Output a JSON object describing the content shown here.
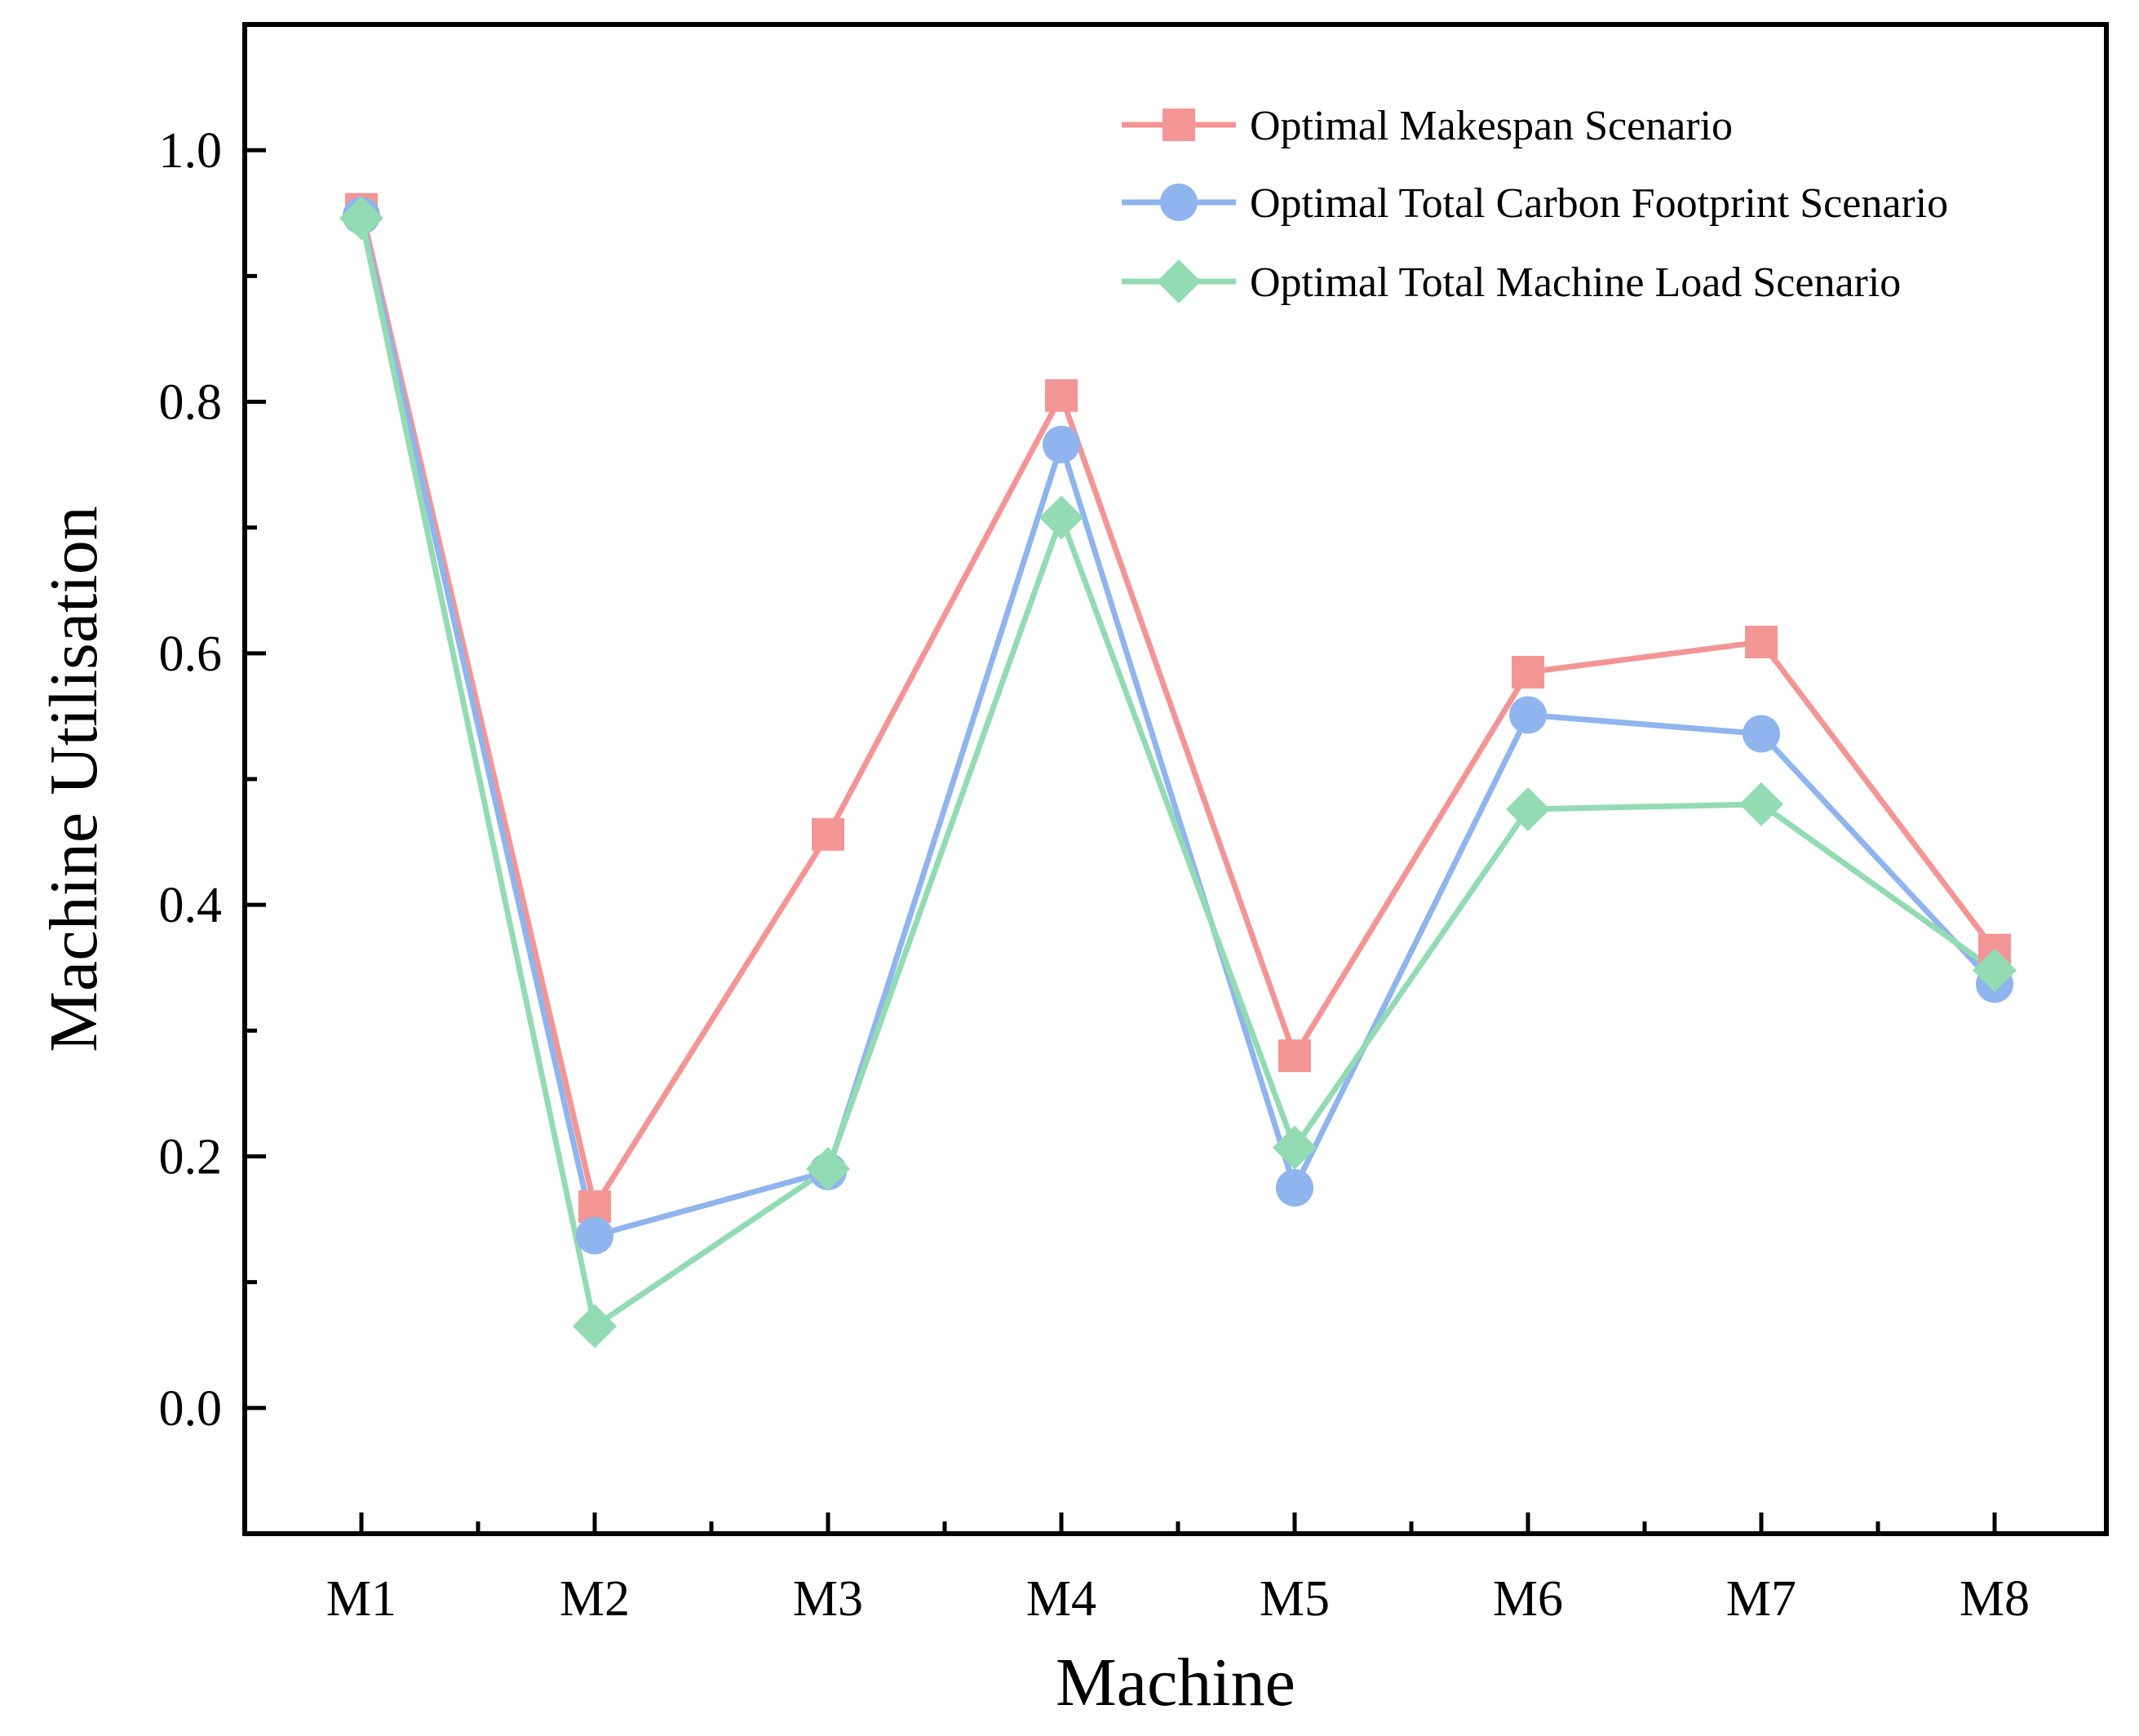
{
  "chart_data": {
    "type": "line",
    "title": "",
    "xlabel": "Machine",
    "ylabel": "Machine Utilisation",
    "categories": [
      "M1",
      "M2",
      "M3",
      "M4",
      "M5",
      "M6",
      "M7",
      "M8"
    ],
    "ylim": [
      -0.1,
      1.1
    ],
    "yticks": [
      0.0,
      0.2,
      0.4,
      0.6,
      0.8,
      1.0
    ],
    "ytick_labels": [
      "0.0",
      "0.2",
      "0.4",
      "0.6",
      "0.8",
      "1.0"
    ],
    "grid": false,
    "legend_position": "top-right",
    "series": [
      {
        "name": "Optimal Makespan Scenario",
        "color": "#f49595",
        "marker": "square",
        "values": [
          0.953,
          0.16,
          0.456,
          0.805,
          0.28,
          0.585,
          0.609,
          0.364
        ]
      },
      {
        "name": "Optimal Total Carbon Footprint Scenario",
        "color": "#8fb4ee",
        "marker": "circle",
        "values": [
          0.948,
          0.137,
          0.188,
          0.766,
          0.175,
          0.551,
          0.536,
          0.337
        ]
      },
      {
        "name": "Optimal Total Machine Load Scenario",
        "color": "#93dbb3",
        "marker": "diamond",
        "values": [
          0.946,
          0.065,
          0.19,
          0.708,
          0.207,
          0.476,
          0.48,
          0.348
        ]
      }
    ]
  }
}
